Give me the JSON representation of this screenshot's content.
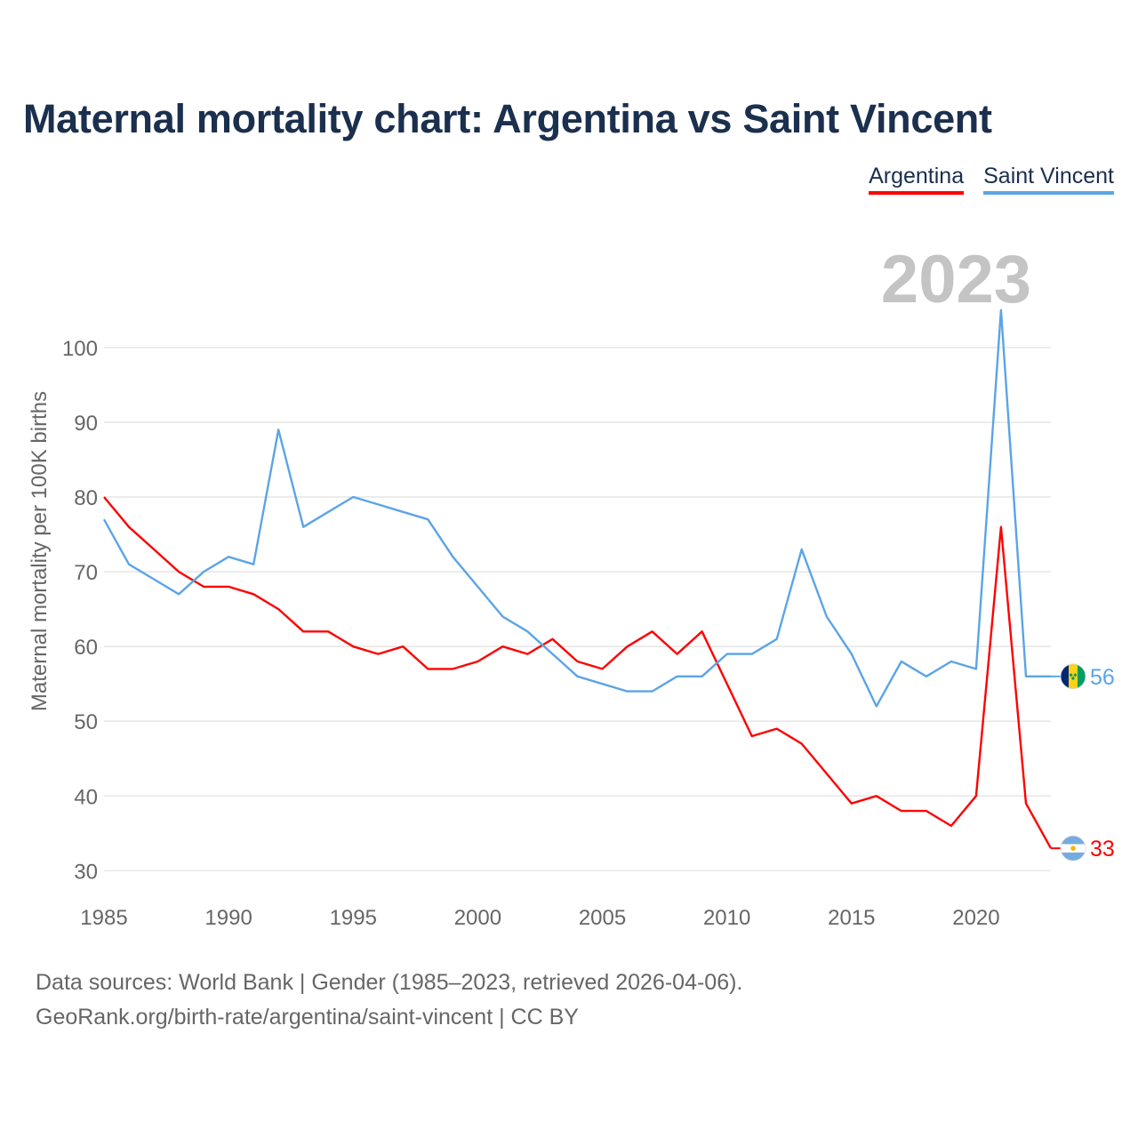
{
  "chart_data": {
    "type": "line",
    "title": "Maternal mortality chart: Argentina vs Saint Vincent",
    "ylabel": "Maternal mortality per 100K births",
    "xlabel": "",
    "xlim": [
      1985,
      2023
    ],
    "ylim": [
      26,
      112
    ],
    "x_ticks": [
      1985,
      1990,
      1995,
      2000,
      2005,
      2010,
      2015,
      2020
    ],
    "y_ticks": [
      30,
      40,
      50,
      60,
      70,
      80,
      90,
      100
    ],
    "year_watermark": "2023",
    "x": [
      1985,
      1986,
      1987,
      1988,
      1989,
      1990,
      1991,
      1992,
      1993,
      1994,
      1995,
      1996,
      1997,
      1998,
      1999,
      2000,
      2001,
      2002,
      2003,
      2004,
      2005,
      2006,
      2007,
      2008,
      2009,
      2010,
      2011,
      2012,
      2013,
      2014,
      2015,
      2016,
      2017,
      2018,
      2019,
      2020,
      2021,
      2022,
      2023
    ],
    "series": [
      {
        "name": "Argentina",
        "color": "#ff0000",
        "values": [
          80,
          76,
          73,
          70,
          68,
          68,
          67,
          65,
          62,
          62,
          60,
          59,
          60,
          57,
          57,
          58,
          60,
          59,
          61,
          58,
          57,
          60,
          62,
          59,
          62,
          55,
          48,
          49,
          47,
          43,
          39,
          40,
          38,
          38,
          36,
          40,
          76,
          39,
          33
        ],
        "end_label": "33",
        "flag_icon": "argentina-flag-icon"
      },
      {
        "name": "Saint Vincent",
        "color": "#5ba4e6",
        "values": [
          77,
          71,
          69,
          67,
          70,
          72,
          71,
          89,
          76,
          78,
          80,
          79,
          78,
          77,
          72,
          68,
          64,
          62,
          59,
          56,
          55,
          54,
          54,
          56,
          56,
          59,
          59,
          61,
          73,
          64,
          59,
          52,
          58,
          56,
          58,
          57,
          105,
          56,
          56
        ],
        "end_label": "56",
        "flag_icon": "saint-vincent-flag-icon"
      }
    ]
  },
  "legend": {
    "argentina": "Argentina",
    "saint_vincent": "Saint Vincent"
  },
  "source": {
    "line1": "Data sources: World Bank | Gender (1985–2023, retrieved 2026-04-06).",
    "line2": "GeoRank.org/birth-rate/argentina/saint-vincent | CC BY"
  }
}
